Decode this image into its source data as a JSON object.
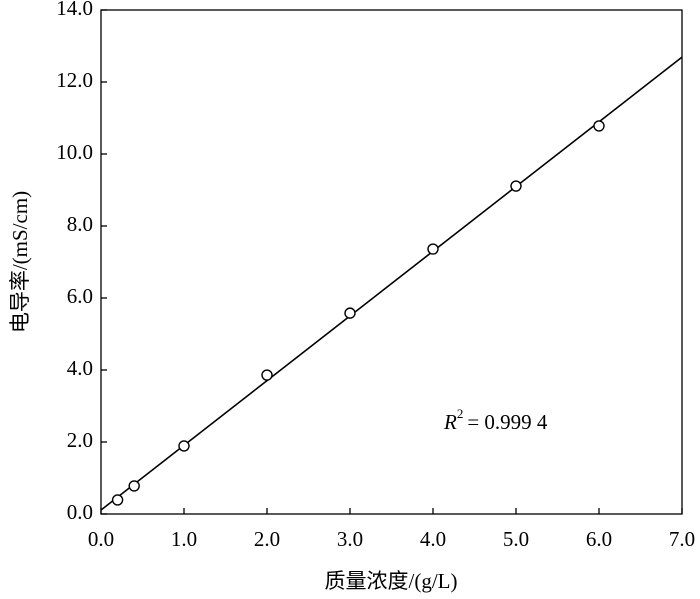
{
  "chart_data": {
    "type": "scatter",
    "x_label": "质量浓度/(g/L)",
    "y_label": "电导率/(mS/cm)",
    "x": [
      0.2,
      0.4,
      1.0,
      2.0,
      3.0,
      4.0,
      5.0,
      6.0
    ],
    "values": [
      0.39,
      0.78,
      1.89,
      3.86,
      5.58,
      7.36,
      9.11,
      10.78
    ],
    "color": "#000000",
    "fit_line": {
      "x": [
        0,
        7
      ],
      "values": [
        0.11,
        12.69
      ]
    },
    "annotation": {
      "symbol": "R",
      "superscript": "2",
      "text": "= 0.999 4"
    },
    "xlim": [
      0,
      7
    ],
    "ylim": [
      0,
      14
    ],
    "xticks": [
      {
        "value": 0,
        "label": "0.0"
      },
      {
        "value": 1,
        "label": "1.0"
      },
      {
        "value": 2,
        "label": "2.0"
      },
      {
        "value": 3,
        "label": "3.0"
      },
      {
        "value": 4,
        "label": "4.0"
      },
      {
        "value": 5,
        "label": "5.0"
      },
      {
        "value": 6,
        "label": "6.0"
      },
      {
        "value": 7,
        "label": "7.0"
      }
    ],
    "yticks": [
      {
        "value": 0,
        "label": "0.0"
      },
      {
        "value": 2,
        "label": "2.0"
      },
      {
        "value": 4,
        "label": "4.0"
      },
      {
        "value": 6,
        "label": "6.0"
      },
      {
        "value": 8,
        "label": "8.0"
      },
      {
        "value": 10,
        "label": "10.0"
      },
      {
        "value": 12,
        "label": "12.0"
      },
      {
        "value": 14,
        "label": "14.0"
      }
    ],
    "grid": false
  }
}
